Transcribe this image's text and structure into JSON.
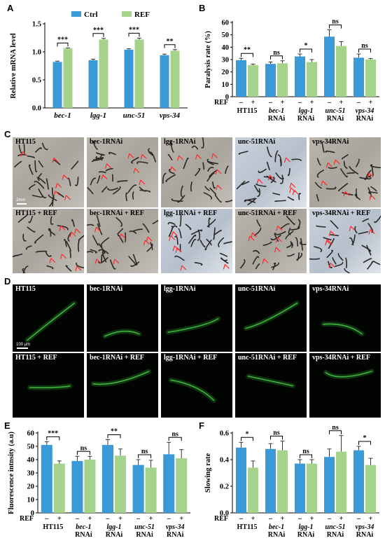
{
  "panel_letters": [
    "A",
    "B",
    "C",
    "D",
    "E",
    "F"
  ],
  "colors": {
    "ctrl": "#3a9ad8",
    "ref": "#a6d38c",
    "photo": "#b3afa7",
    "fluo": "#44cc44"
  },
  "chart_data": [
    {
      "type": "bar",
      "panel": "A",
      "ylabel": "Relative mRNA level",
      "ylim": [
        0,
        1.5
      ],
      "yticks": [
        "0.0",
        "0.5",
        "1.0",
        "1.5"
      ],
      "legend": [
        "Ctrl",
        "REF"
      ],
      "legend_position": "top",
      "categories": [
        "bec-1",
        "lgg-1",
        "unc-51",
        "vps-34"
      ],
      "series": [
        {
          "name": "Ctrl",
          "values": [
            0.82,
            0.85,
            1.04,
            0.94
          ],
          "errors": [
            0.015,
            0.02,
            0.015,
            0.02
          ]
        },
        {
          "name": "REF",
          "values": [
            1.06,
            1.22,
            1.22,
            1.02
          ],
          "errors": [
            0.01,
            0.02,
            0.025,
            0.02
          ]
        }
      ],
      "significance": [
        "***",
        "***",
        "***",
        "**"
      ]
    },
    {
      "type": "bar",
      "panel": "B",
      "ylabel": "Paralysis rate (%)",
      "ylim": [
        0,
        60
      ],
      "yticks": [
        "0",
        "10",
        "20",
        "30",
        "40",
        "50",
        "60"
      ],
      "row_label": "REF",
      "pair_marks": [
        "–",
        "+"
      ],
      "categories": [
        [
          "HT115",
          ""
        ],
        [
          "bec-1",
          "RNAi"
        ],
        [
          "lgg-1",
          "RNAi"
        ],
        [
          "unc-51",
          "RNAi"
        ],
        [
          "vps-34",
          "RNAi"
        ]
      ],
      "series": [
        {
          "values": [
            29.5,
            26.5,
            32.5,
            48.5,
            31.5
          ],
          "errors": [
            1.5,
            1.5,
            2.0,
            5.5,
            3.0
          ]
        },
        {
          "values": [
            25.5,
            27,
            28,
            41,
            30
          ],
          "errors": [
            0.8,
            2.0,
            2.0,
            3.5,
            0.8
          ]
        }
      ],
      "significance": [
        "**",
        "ns",
        "*",
        "ns",
        "ns"
      ]
    },
    {
      "type": "bar",
      "panel": "E",
      "ylabel": "Fluorescence intnsity (a.u)",
      "ylim": [
        0,
        60
      ],
      "yticks": [
        "0",
        "10",
        "20",
        "30",
        "40",
        "50",
        "60"
      ],
      "row_label": "REF",
      "pair_marks": [
        "–",
        "+"
      ],
      "categories": [
        [
          "HT115",
          ""
        ],
        [
          "bec-1",
          "RNAi"
        ],
        [
          "lgg-1",
          "RNAi"
        ],
        [
          "unc-51",
          "RNAi"
        ],
        [
          "vps-34",
          "RNAi"
        ]
      ],
      "series": [
        {
          "values": [
            51,
            39,
            51,
            36,
            44
          ],
          "errors": [
            2.5,
            3.5,
            4.0,
            4.0,
            9.0
          ]
        },
        {
          "values": [
            37,
            40,
            43,
            34,
            41
          ],
          "errors": [
            2.0,
            2.5,
            5.0,
            5.5,
            6.5
          ]
        }
      ],
      "significance": [
        "***",
        "ns",
        "**",
        "ns",
        "ns"
      ]
    },
    {
      "type": "bar",
      "panel": "F",
      "ylabel": "Slowing rate",
      "ylim": [
        0,
        0.6
      ],
      "yticks": [
        "0.0",
        "0.2",
        "0.4",
        "0.6"
      ],
      "row_label": "REF",
      "pair_marks": [
        "–",
        "+"
      ],
      "categories": [
        [
          "HT115",
          ""
        ],
        [
          "bec-1",
          "RNAi"
        ],
        [
          "lgg-1",
          "RNAi"
        ],
        [
          "unc-51",
          "RNAi"
        ],
        [
          "vps-34",
          "RNAi"
        ]
      ],
      "series": [
        {
          "values": [
            0.49,
            0.48,
            0.37,
            0.42,
            0.47
          ],
          "errors": [
            0.04,
            0.04,
            0.03,
            0.06,
            0.03
          ]
        },
        {
          "values": [
            0.34,
            0.47,
            0.37,
            0.46,
            0.36
          ],
          "errors": [
            0.05,
            0.07,
            0.03,
            0.12,
            0.05
          ]
        }
      ],
      "significance": [
        "*",
        "ns",
        "ns",
        "ns",
        "*"
      ]
    }
  ],
  "panel_C": {
    "top": [
      "HT115",
      "bec-1RNAi",
      "lgg-1RNAi",
      "unc-51RNAi",
      "vps-34RNAi"
    ],
    "bottom": [
      "HT115 + REF",
      "bec-1RNAi + REF",
      "lgg-1RNAi + REF",
      "unc-51RNAi + REF",
      "vps-34RNAi + REF"
    ],
    "scale_label": "2mm"
  },
  "panel_D": {
    "top": [
      "HT115",
      "bec-1RNAi",
      "lgg-1RNAi",
      "unc-51RNAi",
      "vps-34RNAi"
    ],
    "bottom": [
      "HT115 + REF",
      "bec-1RNAi + REF",
      "lgg-1RNAi + REF",
      "unc-51RNAi + REF",
      "vps-34RNAi + REF"
    ],
    "scale_label": "100 μm"
  }
}
